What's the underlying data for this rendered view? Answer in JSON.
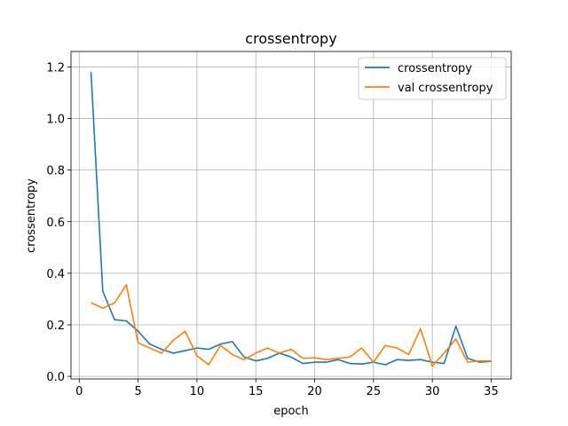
{
  "chart_data": {
    "type": "line",
    "title": "crossentropy",
    "xlabel": "epoch",
    "ylabel": "crossentropy",
    "xlim": [
      -0.7,
      36.7
    ],
    "ylim": [
      -0.01,
      1.26
    ],
    "xticks": [
      0,
      5,
      10,
      15,
      20,
      25,
      30,
      35
    ],
    "yticks": [
      0.0,
      0.2,
      0.4,
      0.6,
      0.8,
      1.0,
      1.2
    ],
    "ytick_labels": [
      "0.0",
      "0.2",
      "0.4",
      "0.6",
      "0.8",
      "1.0",
      "1.2"
    ],
    "grid": true,
    "legend_position": "top-right",
    "x": [
      1,
      2,
      3,
      4,
      5,
      6,
      7,
      8,
      9,
      10,
      11,
      12,
      13,
      14,
      15,
      16,
      17,
      18,
      19,
      20,
      21,
      22,
      23,
      24,
      25,
      26,
      27,
      28,
      29,
      30,
      31,
      32,
      33,
      34,
      35
    ],
    "series": [
      {
        "name": "crossentropy",
        "color": "#1f77b4",
        "values": [
          1.18,
          0.33,
          0.22,
          0.215,
          0.175,
          0.125,
          0.105,
          0.09,
          0.1,
          0.11,
          0.105,
          0.125,
          0.135,
          0.075,
          0.06,
          0.07,
          0.09,
          0.075,
          0.05,
          0.055,
          0.055,
          0.065,
          0.05,
          0.048,
          0.055,
          0.045,
          0.065,
          0.062,
          0.065,
          0.055,
          0.05,
          0.195,
          0.07,
          0.055,
          0.058
        ]
      },
      {
        "name": "val crossentropy",
        "color": "#ff7f0e",
        "values": [
          0.285,
          0.265,
          0.285,
          0.355,
          0.13,
          0.11,
          0.09,
          0.14,
          0.175,
          0.08,
          0.045,
          0.12,
          0.085,
          0.065,
          0.09,
          0.11,
          0.09,
          0.105,
          0.07,
          0.072,
          0.065,
          0.07,
          0.075,
          0.11,
          0.055,
          0.12,
          0.11,
          0.085,
          0.185,
          0.04,
          0.09,
          0.145,
          0.055,
          0.06,
          0.06
        ]
      }
    ]
  }
}
